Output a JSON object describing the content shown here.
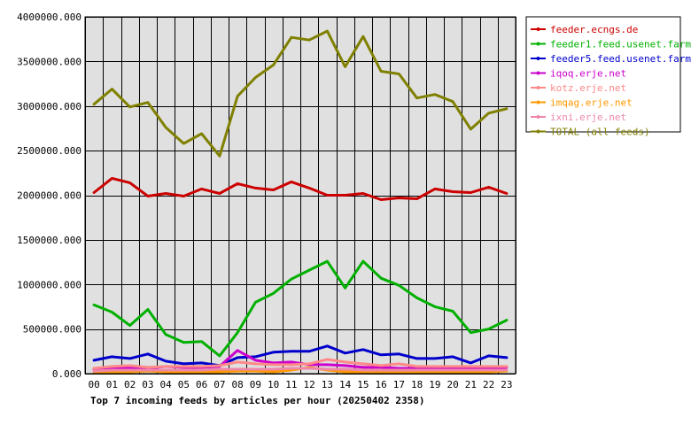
{
  "chart_data": {
    "type": "line",
    "title": "Top 7 incoming feeds by articles per hour (20250402 2358)",
    "xlabel": "",
    "ylabel": "",
    "ylim": [
      0,
      4000000
    ],
    "yticks": [
      0,
      500000,
      1000000,
      1500000,
      2000000,
      2500000,
      3000000,
      3500000,
      4000000
    ],
    "ytick_labels": [
      "0.000",
      "500000.000",
      "1000000.000",
      "1500000.000",
      "2000000.000",
      "2500000.000",
      "3000000.000",
      "3500000.000",
      "4000000.000"
    ],
    "grid": true,
    "legend_position": "top-right",
    "x": [
      "00",
      "01",
      "02",
      "03",
      "04",
      "05",
      "06",
      "07",
      "08",
      "09",
      "10",
      "11",
      "12",
      "13",
      "14",
      "15",
      "16",
      "17",
      "18",
      "19",
      "20",
      "21",
      "22",
      "23"
    ],
    "series": [
      {
        "name": "feeder.ecngs.de",
        "color": "#cc0000",
        "values": [
          2030000,
          2190000,
          2140000,
          1990000,
          2020000,
          1990000,
          2070000,
          2020000,
          2130000,
          2080000,
          2060000,
          2150000,
          2080000,
          2000000,
          2000000,
          2020000,
          1950000,
          1970000,
          1960000,
          2070000,
          2040000,
          2030000,
          2090000,
          2020000
        ]
      },
      {
        "name": "feeder1.feed.usenet.farm",
        "color": "#00b000",
        "values": [
          770000,
          690000,
          540000,
          720000,
          440000,
          350000,
          360000,
          200000,
          460000,
          800000,
          900000,
          1060000,
          1160000,
          1260000,
          960000,
          1260000,
          1070000,
          990000,
          850000,
          750000,
          700000,
          460000,
          500000,
          600000
        ]
      },
      {
        "name": "feeder5.feed.usenet.farm",
        "color": "#0000cc",
        "values": [
          150000,
          190000,
          170000,
          220000,
          140000,
          110000,
          120000,
          90000,
          180000,
          190000,
          240000,
          250000,
          250000,
          310000,
          230000,
          270000,
          210000,
          220000,
          170000,
          170000,
          190000,
          120000,
          200000,
          180000
        ]
      },
      {
        "name": "iqoq.erje.net",
        "color": "#cc00cc",
        "values": [
          50000,
          60000,
          70000,
          60000,
          80000,
          70000,
          70000,
          80000,
          260000,
          150000,
          120000,
          130000,
          100000,
          100000,
          90000,
          70000,
          70000,
          60000,
          60000,
          60000,
          60000,
          60000,
          60000,
          70000
        ]
      },
      {
        "name": "kotz.erje.net",
        "color": "#ff8888",
        "values": [
          60000,
          80000,
          90000,
          70000,
          80000,
          80000,
          80000,
          90000,
          130000,
          110000,
          100000,
          100000,
          110000,
          160000,
          130000,
          110000,
          90000,
          110000,
          80000,
          80000,
          80000,
          80000,
          80000,
          80000
        ]
      },
      {
        "name": "imqag.erje.net",
        "color": "#ff9900",
        "values": [
          10000,
          20000,
          20000,
          30000,
          20000,
          20000,
          20000,
          20000,
          30000,
          30000,
          20000,
          40000,
          70000,
          40000,
          20000,
          20000,
          20000,
          20000,
          20000,
          20000,
          20000,
          20000,
          20000,
          30000
        ]
      },
      {
        "name": "ixni.erje.net",
        "color": "#ee88aa",
        "values": [
          30000,
          40000,
          40000,
          40000,
          40000,
          40000,
          40000,
          50000,
          50000,
          50000,
          50000,
          60000,
          60000,
          50000,
          50000,
          40000,
          40000,
          40000,
          40000,
          40000,
          40000,
          40000,
          40000,
          40000
        ]
      },
      {
        "name": "TOTAL (all feeds)",
        "color": "#808000",
        "values": [
          3020000,
          3190000,
          2990000,
          3040000,
          2760000,
          2580000,
          2690000,
          2440000,
          3110000,
          3320000,
          3460000,
          3770000,
          3740000,
          3840000,
          3440000,
          3780000,
          3390000,
          3360000,
          3090000,
          3130000,
          3050000,
          2740000,
          2920000,
          2970000
        ]
      }
    ]
  }
}
